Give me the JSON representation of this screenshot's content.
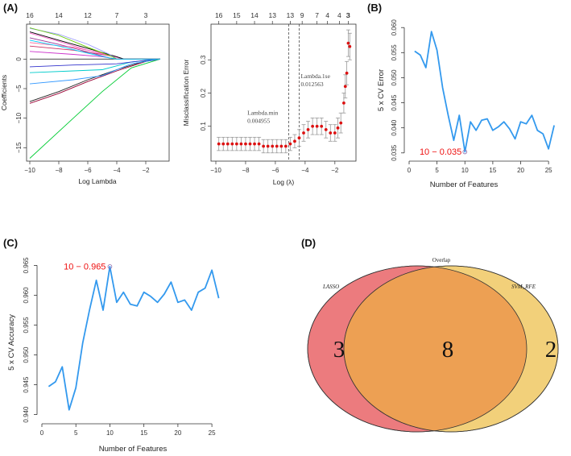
{
  "figure": {
    "panel_labels": [
      "(A)",
      "(B)",
      "(C)",
      "(D)"
    ]
  },
  "chart_data": [
    {
      "id": "lasso_coef",
      "type": "line",
      "title": "",
      "xlabel": "Log Lambda",
      "ylabel": "Coefficients",
      "xlim": [
        -10,
        -0.5
      ],
      "ylim": [
        -17,
        5.5
      ],
      "xticks": [
        -10,
        -8,
        -6,
        -4,
        -2
      ],
      "yticks": [
        -15,
        -10,
        -5,
        0
      ],
      "top_axis": {
        "positions": [
          -10,
          -8,
          -6,
          -4,
          -2
        ],
        "labels": [
          "16",
          "14",
          "12",
          "7",
          "3"
        ]
      },
      "series": [
        {
          "color": "#00cc33",
          "points": [
            [
              -10,
              -16.8
            ],
            [
              -7,
              -10
            ],
            [
              -5,
              -5.5
            ],
            [
              -3,
              -1.5
            ],
            [
              -1,
              0
            ]
          ]
        },
        {
          "color": "#222222",
          "points": [
            [
              -10,
              -7.2
            ],
            [
              -8,
              -5.5
            ],
            [
              -6,
              -3.5
            ],
            [
              -4,
              -1.8
            ],
            [
              -2,
              -0.3
            ],
            [
              -1,
              0
            ]
          ]
        },
        {
          "color": "#990033",
          "points": [
            [
              -10,
              -7.5
            ],
            [
              -8,
              -5.8
            ],
            [
              -6,
              -3.8
            ],
            [
              -4,
              -2
            ],
            [
              -2,
              -0.4
            ],
            [
              -1,
              0
            ]
          ]
        },
        {
          "color": "#3399ff",
          "points": [
            [
              -10,
              -4.2
            ],
            [
              -7,
              -3.5
            ],
            [
              -5,
              -2.8
            ],
            [
              -3,
              -0.8
            ],
            [
              -1,
              0
            ]
          ]
        },
        {
          "color": "#00cccc",
          "points": [
            [
              -10,
              -2.3
            ],
            [
              -7,
              -2
            ],
            [
              -5,
              -1.8
            ],
            [
              -3,
              -0.5
            ],
            [
              -1,
              0
            ]
          ]
        },
        {
          "color": "#3333cc",
          "points": [
            [
              -10,
              -1.3
            ],
            [
              -7,
              -1
            ],
            [
              -4,
              -0.8
            ],
            [
              -2,
              -0.2
            ],
            [
              -1,
              0
            ]
          ]
        },
        {
          "color": "#333333",
          "points": [
            [
              -10,
              0
            ],
            [
              -4,
              0
            ],
            [
              -1,
              0
            ]
          ]
        },
        {
          "color": "#cc33cc",
          "points": [
            [
              -10,
              1.3
            ],
            [
              -7,
              0.8
            ],
            [
              -5,
              0.4
            ],
            [
              -4,
              0
            ],
            [
              -1,
              0
            ]
          ]
        },
        {
          "color": "#cc3366",
          "points": [
            [
              -10,
              2.2
            ],
            [
              -7,
              1.5
            ],
            [
              -5,
              0.8
            ],
            [
              -4,
              0.3
            ],
            [
              -3.5,
              0
            ],
            [
              -1,
              0
            ]
          ]
        },
        {
          "color": "#ff6699",
          "points": [
            [
              -10,
              2.8
            ],
            [
              -7,
              2
            ],
            [
              -5,
              1
            ],
            [
              -4,
              0.3
            ],
            [
              -3.5,
              0
            ],
            [
              -1,
              0
            ]
          ]
        },
        {
          "color": "#ff66cc",
          "points": [
            [
              -10,
              4.4
            ],
            [
              -8,
              3
            ],
            [
              -6,
              1.5
            ],
            [
              -4,
              0.3
            ],
            [
              -3.5,
              0
            ],
            [
              -1,
              0
            ]
          ]
        },
        {
          "color": "#000000",
          "points": [
            [
              -10,
              4.6
            ],
            [
              -8,
              3.2
            ],
            [
              -6,
              1.8
            ],
            [
              -4,
              0.4
            ],
            [
              -3.5,
              0
            ],
            [
              -1,
              0
            ]
          ]
        },
        {
          "color": "#9999ff",
          "points": [
            [
              -10,
              5.2
            ],
            [
              -8,
              4.2
            ],
            [
              -6,
              2.5
            ],
            [
              -4.5,
              0.8
            ],
            [
              -4,
              0
            ],
            [
              -1,
              0
            ]
          ]
        },
        {
          "color": "#66cc00",
          "points": [
            [
              -10,
              5.3
            ],
            [
              -8,
              4
            ],
            [
              -6,
              2
            ],
            [
              -4.5,
              0.6
            ],
            [
              -4,
              0
            ],
            [
              -1,
              0
            ]
          ]
        },
        {
          "color": "#993399",
          "points": [
            [
              -10,
              3.6
            ],
            [
              -8,
              2.5
            ],
            [
              -6,
              1.2
            ],
            [
              -4.5,
              0.2
            ],
            [
              -4,
              0
            ],
            [
              -1,
              0
            ]
          ]
        },
        {
          "color": "#00ccff",
          "points": [
            [
              -10,
              3.2
            ],
            [
              -8,
              2.2
            ],
            [
              -6,
              1
            ],
            [
              -4.5,
              0.2
            ],
            [
              -4,
              0
            ],
            [
              -1,
              0
            ]
          ]
        }
      ]
    },
    {
      "id": "lasso_cv",
      "type": "scatter",
      "title": "",
      "xlabel": "Log (λ)",
      "ylabel": "Misclassification Error",
      "xlim": [
        -10,
        -0.8
      ],
      "ylim": [
        0.0,
        0.4
      ],
      "xticks": [
        -10,
        -8,
        -6,
        -4,
        -2
      ],
      "yticks": [
        0.1,
        0.2,
        0.3
      ],
      "top_axis": {
        "positions": [
          -9.8,
          -8.6,
          -7.4,
          -6.2,
          -5.0,
          -4.2,
          -3.2,
          -2.5,
          -1.7,
          -1.1
        ],
        "labels": [
          "16",
          "15",
          "14",
          "13",
          "13",
          "9",
          "7",
          "4",
          "4",
          "3"
        ],
        "extra_positions": [
          -0.6
        ],
        "extra_labels": [
          "3"
        ]
      },
      "vlines": [
        -5.1,
        -4.4
      ],
      "annotations": [
        {
          "text_lines": [
            "Lambda.min",
            "0.004955"
          ],
          "x": -6.8,
          "y": 0.135
        },
        {
          "text_lines": [
            "Lambda.1se",
            "0.012563"
          ],
          "x": -4.4,
          "y": 0.245
        }
      ],
      "x": [
        -9.8,
        -9.5,
        -9.2,
        -8.9,
        -8.6,
        -8.3,
        -8.0,
        -7.7,
        -7.4,
        -7.1,
        -6.8,
        -6.5,
        -6.2,
        -5.9,
        -5.6,
        -5.3,
        -5.0,
        -4.7,
        -4.4,
        -4.1,
        -3.8,
        -3.5,
        -3.2,
        -2.9,
        -2.6,
        -2.3,
        -2.0,
        -1.8,
        -1.6,
        -1.4,
        -1.3,
        -1.2,
        -1.1,
        -1.0
      ],
      "values": [
        0.047,
        0.047,
        0.047,
        0.047,
        0.047,
        0.047,
        0.047,
        0.047,
        0.047,
        0.047,
        0.04,
        0.04,
        0.04,
        0.04,
        0.04,
        0.04,
        0.047,
        0.055,
        0.065,
        0.08,
        0.09,
        0.1,
        0.1,
        0.1,
        0.09,
        0.08,
        0.08,
        0.095,
        0.11,
        0.17,
        0.22,
        0.26,
        0.35,
        0.34
      ],
      "err": [
        0.02,
        0.02,
        0.02,
        0.02,
        0.02,
        0.02,
        0.02,
        0.02,
        0.02,
        0.02,
        0.02,
        0.02,
        0.02,
        0.02,
        0.02,
        0.02,
        0.02,
        0.02,
        0.025,
        0.025,
        0.025,
        0.025,
        0.025,
        0.025,
        0.025,
        0.025,
        0.025,
        0.03,
        0.03,
        0.03,
        0.035,
        0.035,
        0.04,
        0.04
      ]
    },
    {
      "id": "svm_error",
      "type": "line",
      "title": "",
      "xlabel": "Number of Features",
      "ylabel": "5 x CV Error",
      "xlim": [
        0,
        27
      ],
      "ylim": [
        0.034,
        0.061
      ],
      "xticks": [
        0,
        5,
        10,
        15,
        20,
        25
      ],
      "yticks": [
        0.035,
        0.04,
        0.045,
        0.05,
        0.055,
        0.06
      ],
      "ytick_labels": [
        "0.035",
        "0.040",
        "0.045",
        "0.050",
        "0.055",
        "0.060"
      ],
      "color": "#3399ee",
      "x": [
        1,
        2,
        3,
        4,
        5,
        6,
        7,
        8,
        9,
        10,
        11,
        12,
        13,
        14,
        15,
        16,
        17,
        18,
        19,
        20,
        21,
        22,
        23,
        24,
        25,
        26
      ],
      "values": [
        0.0553,
        0.0545,
        0.052,
        0.0592,
        0.0555,
        0.048,
        0.0425,
        0.0375,
        0.0425,
        0.0352,
        0.0412,
        0.0395,
        0.0415,
        0.0418,
        0.0395,
        0.0402,
        0.0412,
        0.0398,
        0.0378,
        0.0412,
        0.0408,
        0.0425,
        0.0395,
        0.0388,
        0.0358,
        0.0405
      ],
      "highlight": {
        "x": 10,
        "y": 0.0352,
        "label": "10 − 0.035",
        "color": "#ee1111"
      }
    },
    {
      "id": "svm_accuracy",
      "type": "line",
      "title": "",
      "xlabel": "Number of Features",
      "ylabel": "5 x CV Accuracy",
      "xlim": [
        0,
        27
      ],
      "ylim": [
        0.939,
        0.966
      ],
      "xticks": [
        0,
        5,
        10,
        15,
        20,
        25
      ],
      "yticks": [
        0.94,
        0.945,
        0.95,
        0.955,
        0.96,
        0.965
      ],
      "ytick_labels": [
        "0.940",
        "0.945",
        "0.950",
        "0.955",
        "0.960",
        "0.965"
      ],
      "color": "#3399ee",
      "x": [
        1,
        2,
        3,
        4,
        5,
        6,
        7,
        8,
        9,
        10,
        11,
        12,
        13,
        14,
        15,
        16,
        17,
        18,
        19,
        20,
        21,
        22,
        23,
        24,
        25,
        26
      ],
      "values": [
        0.9447,
        0.9455,
        0.948,
        0.9408,
        0.9445,
        0.952,
        0.9575,
        0.9625,
        0.9575,
        0.9648,
        0.9588,
        0.9605,
        0.9585,
        0.9582,
        0.9605,
        0.9598,
        0.9588,
        0.9602,
        0.9622,
        0.9588,
        0.9592,
        0.9575,
        0.9605,
        0.9612,
        0.9642,
        0.9595
      ],
      "highlight": {
        "x": 10,
        "y": 0.9648,
        "label": "10 − 0.965",
        "color": "#ee1111"
      }
    },
    {
      "id": "venn",
      "type": "venn",
      "title": "Overlap",
      "sets": [
        {
          "name": "LASSO",
          "only": 3,
          "color": "#ec7b7e"
        },
        {
          "name": "SVM_RFE",
          "only": 2,
          "color": "#f2d07a"
        }
      ],
      "overlap": 8,
      "overlap_color": "#eda053",
      "labels": {
        "left": "3",
        "center": "8",
        "right": "2"
      }
    }
  ]
}
